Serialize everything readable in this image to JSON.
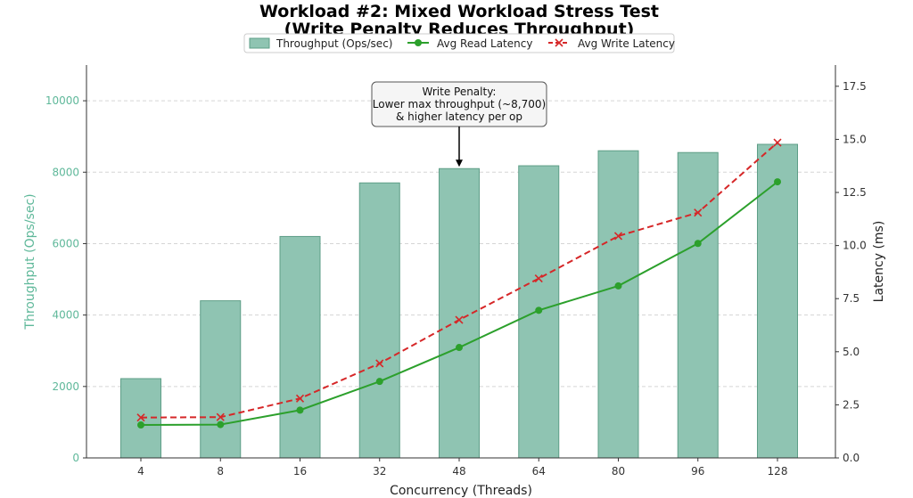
{
  "chart_data": {
    "type": "bar+line",
    "title_line1": "Workload #2: Mixed Workload Stress Test",
    "title_line2": "(Write Penalty Reduces Throughput)",
    "xlabel": "Concurrency (Threads)",
    "ylabel_left": "Throughput (Ops/sec)",
    "ylabel_right": "Latency (ms)",
    "categories": [
      "4",
      "8",
      "16",
      "32",
      "48",
      "64",
      "80",
      "96",
      "128"
    ],
    "ylim_left": [
      0,
      11000
    ],
    "yticks_left": [
      "0",
      "2000",
      "4000",
      "6000",
      "8000",
      "10000"
    ],
    "ylim_right": [
      0,
      18.5
    ],
    "yticks_right": [
      "0.0",
      "2.5",
      "5.0",
      "7.5",
      "10.0",
      "12.5",
      "15.0",
      "17.5"
    ],
    "grid": true,
    "legend_position": "top-center",
    "series": [
      {
        "name": "Throughput (Ops/sec)",
        "kind": "bar",
        "axis": "left",
        "color": "#8fc4b2",
        "values": [
          2220,
          4400,
          6200,
          7700,
          8100,
          8180,
          8600,
          8550,
          8780
        ]
      },
      {
        "name": "Avg Read Latency",
        "kind": "line",
        "axis": "right",
        "color": "#2ca02c",
        "marker": "o",
        "values": [
          1.55,
          1.57,
          2.25,
          3.6,
          5.2,
          6.95,
          8.1,
          10.1,
          13.0
        ]
      },
      {
        "name": "Avg Write Latency",
        "kind": "line-dashed",
        "axis": "right",
        "color": "#d62728",
        "marker": "x",
        "values": [
          1.9,
          1.92,
          2.8,
          4.45,
          6.5,
          8.45,
          10.45,
          11.55,
          14.85
        ]
      }
    ],
    "annotation": {
      "lines": [
        "Write Penalty:",
        "Lower max throughput (~8,700)",
        "& higher latency per op"
      ],
      "target_category": "48",
      "target_value": 8100
    }
  }
}
